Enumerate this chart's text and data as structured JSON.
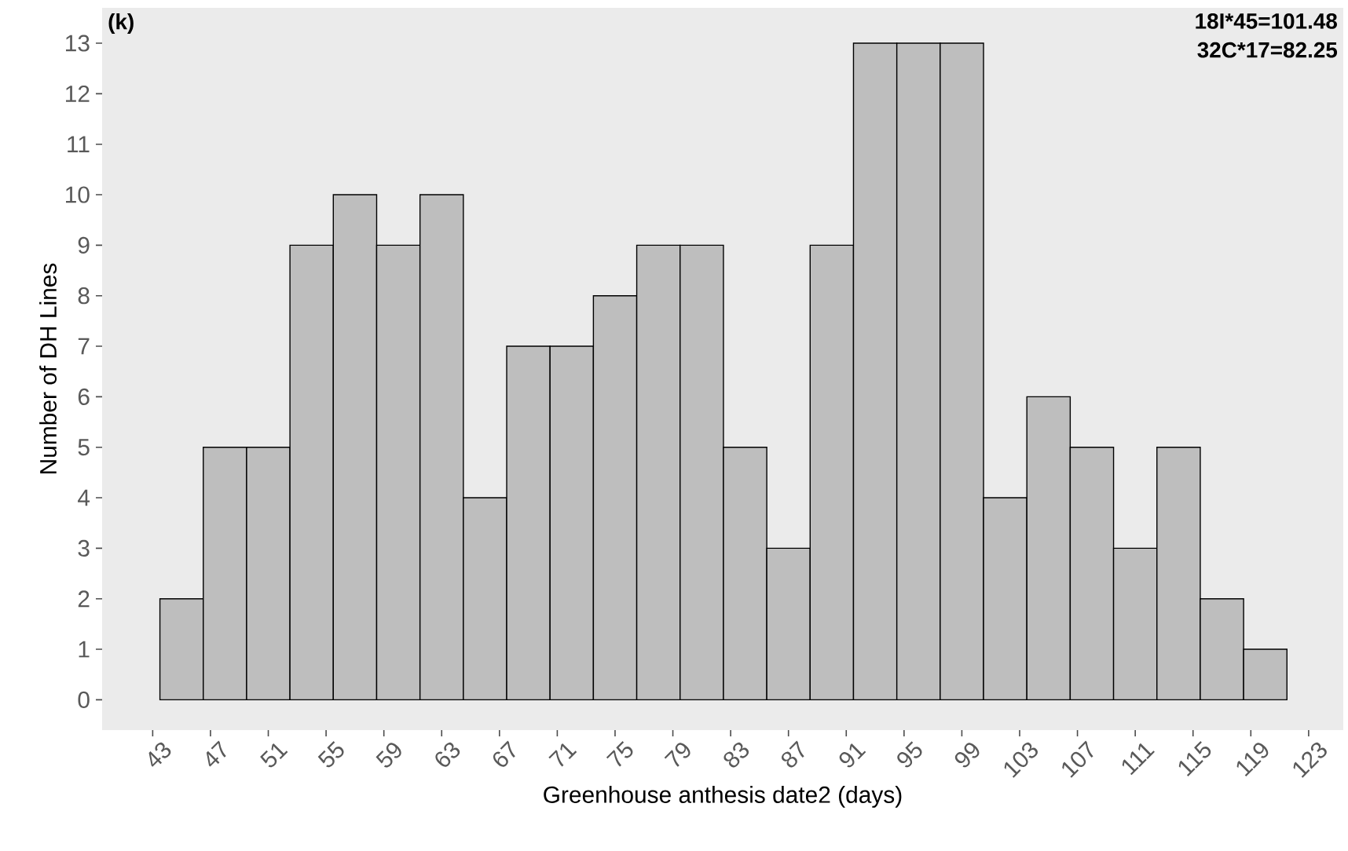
{
  "chart_data": {
    "type": "histogram",
    "xlabel": "Greenhouse anthesis date2 (days)",
    "ylabel": "Number of DH Lines",
    "bins": [
      43.5,
      46.5,
      49.5,
      52.5,
      55.5,
      58.5,
      61.5,
      64.5,
      67.5,
      70.5,
      73.5,
      76.5,
      79.5,
      82.5,
      85.5,
      88.5,
      91.5,
      94.5,
      97.5,
      100.5,
      103.5,
      106.5,
      109.5,
      112.5,
      115.5,
      118.5,
      121.5
    ],
    "values": [
      2,
      5,
      5,
      9,
      10,
      9,
      10,
      4,
      7,
      7,
      8,
      9,
      9,
      5,
      3,
      9,
      13,
      13,
      13,
      4,
      6,
      5,
      3,
      5,
      2,
      1
    ],
    "color": "#bebebe",
    "xlim": [
      39.5,
      125.4
    ],
    "ylim": [
      -0.6,
      13.7
    ],
    "xticks": [
      43,
      47,
      51,
      55,
      59,
      63,
      67,
      71,
      75,
      79,
      83,
      87,
      91,
      95,
      99,
      103,
      107,
      111,
      115,
      119,
      123
    ],
    "yticks": [
      0,
      1,
      2,
      3,
      4,
      5,
      6,
      7,
      8,
      9,
      10,
      11,
      12,
      13
    ],
    "annotations": [
      "(k)",
      "18I*45=101.48",
      "32C*17=82.25"
    ]
  }
}
